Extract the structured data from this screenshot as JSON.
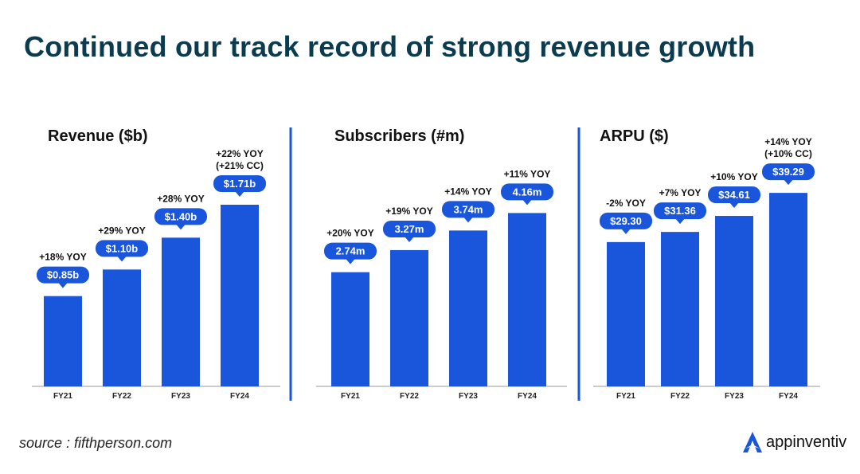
{
  "page": {
    "title": "Continued our track record of strong revenue growth",
    "source": "source : fifthperson.com",
    "brand": "appinventiv",
    "colors": {
      "bar": "#1a56db",
      "title": "#0b3b4f",
      "divider": "#1a56db",
      "axis": "#999999"
    }
  },
  "chart_data": [
    {
      "type": "bar",
      "title": "Revenue ($b)",
      "categories": [
        "FY21",
        "FY22",
        "FY23",
        "FY24"
      ],
      "values": [
        0.85,
        1.1,
        1.4,
        1.71
      ],
      "value_labels": [
        "$0.85b",
        "$1.10b",
        "$1.40b",
        "$1.71b"
      ],
      "annotations": [
        [
          "+18% YOY"
        ],
        [
          "+29% YOY"
        ],
        [
          "+28% YOY"
        ],
        [
          "+22% YOY",
          "(+21% CC)"
        ]
      ],
      "ylim": [
        0,
        2.55
      ]
    },
    {
      "type": "bar",
      "title": "Subscribers (#m)",
      "categories": [
        "FY21",
        "FY22",
        "FY23",
        "FY24"
      ],
      "values": [
        2.74,
        3.27,
        3.74,
        4.16
      ],
      "value_labels": [
        "2.74m",
        "3.27m",
        "3.74m",
        "4.16m"
      ],
      "annotations": [
        [
          "+20% YOY"
        ],
        [
          "+19% YOY"
        ],
        [
          "+14% YOY"
        ],
        [
          "+11% YOY"
        ]
      ],
      "ylim": [
        0,
        6.5
      ]
    },
    {
      "type": "bar",
      "title": "ARPU ($)",
      "categories": [
        "FY21",
        "FY22",
        "FY23",
        "FY24"
      ],
      "values": [
        29.3,
        31.36,
        34.61,
        39.29
      ],
      "value_labels": [
        "$29.30",
        "$31.36",
        "$34.61",
        "$39.29"
      ],
      "annotations": [
        [
          "-2% YOY"
        ],
        [
          "+7% YOY"
        ],
        [
          "+10% YOY"
        ],
        [
          "+14% YOY",
          "(+10% CC)"
        ]
      ],
      "ylim": [
        0,
        55
      ]
    }
  ]
}
